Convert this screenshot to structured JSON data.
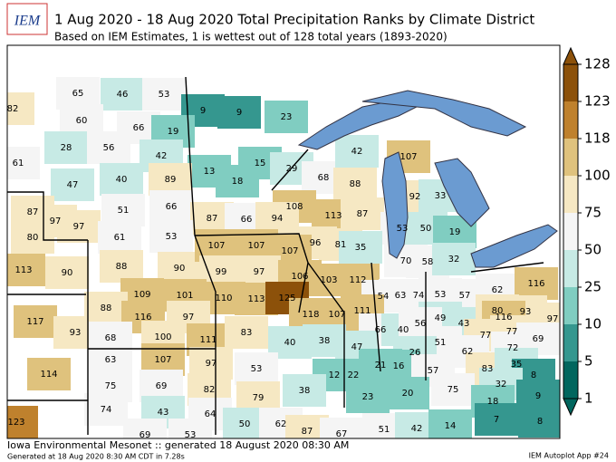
{
  "header": {
    "logo": "IEM",
    "title": "1 Aug 2020 - 18 Aug 2020 Total Precipitation Ranks by Climate District",
    "subtitle": "Based on IEM Estimates, 1 is wettest out of 128 total years (1893-2020)"
  },
  "colorbar": {
    "ticks": [
      1,
      5,
      10,
      25,
      50,
      75,
      100,
      118,
      123,
      128
    ],
    "colors": [
      "#01665e",
      "#35978f",
      "#80cdc1",
      "#c7eae5",
      "#f5f5f5",
      "#f6e8c3",
      "#dfc27d",
      "#bf812d",
      "#8c510a"
    ]
  },
  "districts": [
    82,
    65,
    46,
    53,
    9,
    9,
    60,
    66,
    19,
    23,
    61,
    28,
    56,
    42,
    13,
    15,
    29,
    68,
    88,
    42,
    107,
    18,
    47,
    40,
    89,
    92,
    33,
    87,
    97,
    51,
    66,
    108,
    113,
    87,
    87,
    66,
    94,
    80,
    97,
    61,
    53,
    53,
    50,
    19,
    96,
    81,
    35,
    113,
    90,
    88,
    90,
    107,
    107,
    107,
    70,
    58,
    32,
    99,
    97,
    106,
    103,
    112,
    109,
    101,
    110,
    113,
    125,
    54,
    63,
    74,
    53,
    57,
    62,
    116,
    88,
    116,
    97,
    118,
    107,
    111,
    49,
    43,
    80,
    93,
    116,
    97,
    117,
    93,
    68,
    100,
    111,
    83,
    40,
    38,
    66,
    40,
    56,
    77,
    77,
    69,
    51,
    63,
    107,
    97,
    47,
    26,
    62,
    72,
    114,
    53,
    21,
    16,
    57,
    83,
    35,
    75,
    69,
    82,
    12,
    22,
    8,
    38,
    79,
    23,
    20,
    75,
    32,
    18,
    9,
    74,
    43,
    64,
    123,
    50,
    62,
    87,
    67,
    51,
    42,
    14,
    7,
    8,
    69,
    53
  ],
  "footer": {
    "left": "Iowa Environmental Mesonet :: generated 18 August 2020 08:30 AM",
    "small": "Generated at 18 Aug 2020 8:30 AM CDT in 7.28s",
    "right": "IEM Autoplot App #24"
  }
}
